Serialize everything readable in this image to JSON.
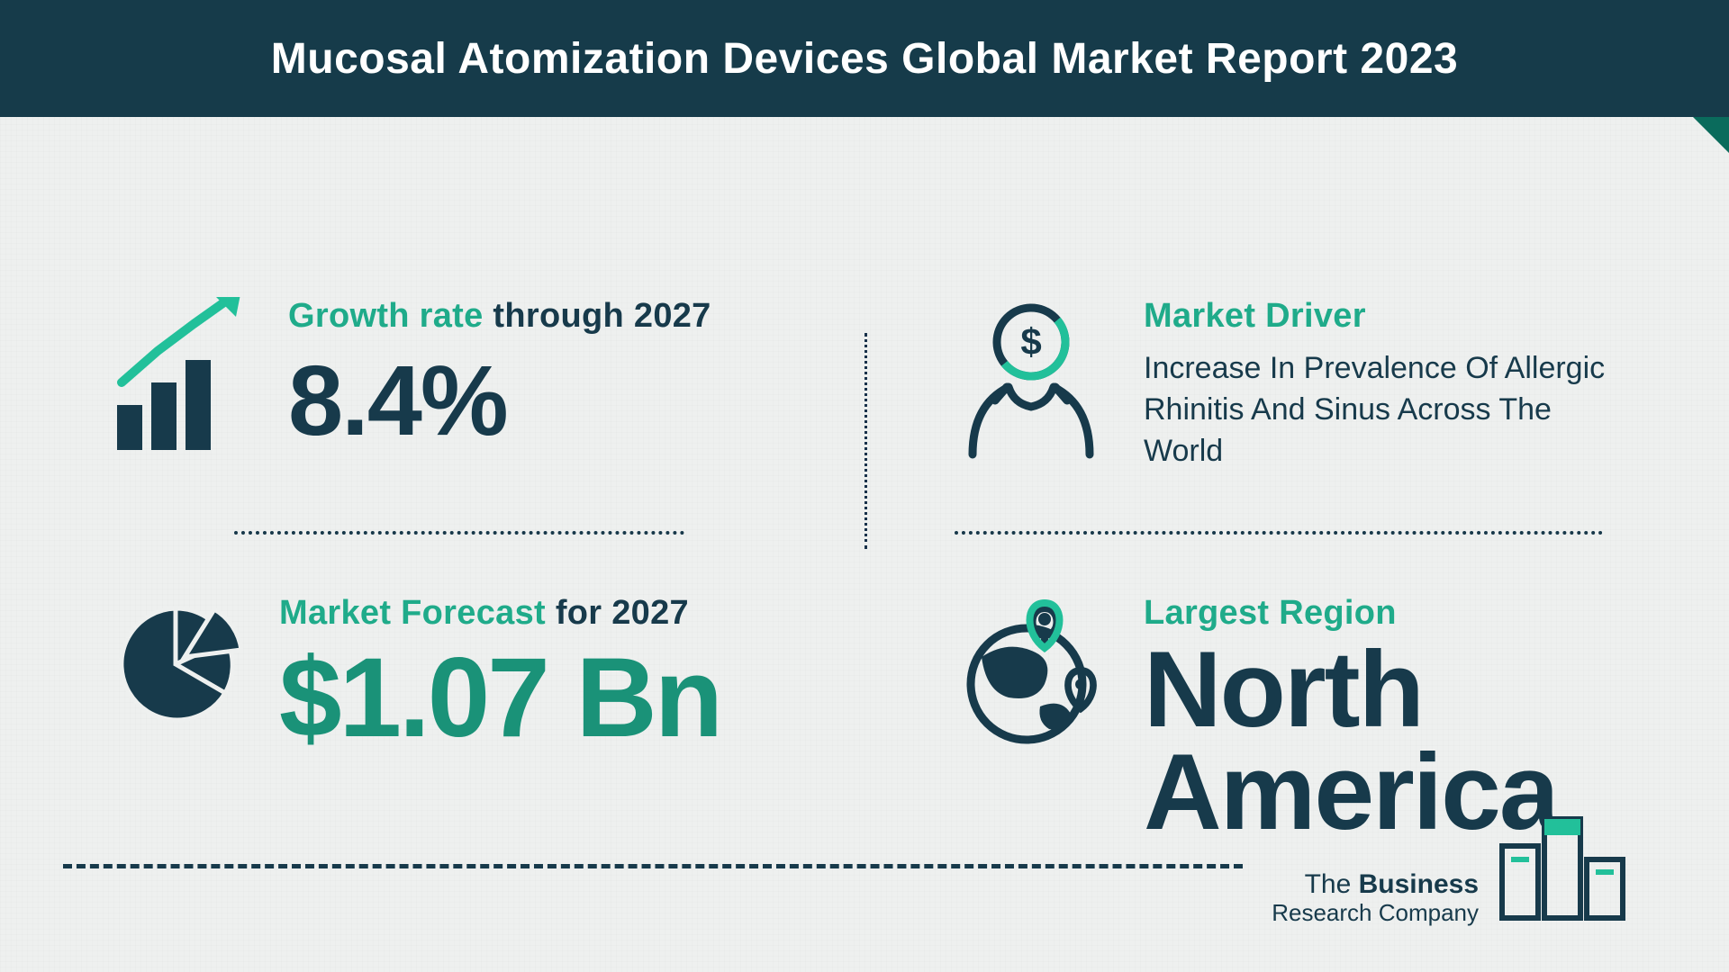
{
  "colors": {
    "header_bg": "#163b4a",
    "accent_green": "#1fab8a",
    "accent_green_dark": "#1a9278",
    "text_dark": "#173a4b",
    "bg": "#eef0ef",
    "corner": "#0a6b5c"
  },
  "header": {
    "title": "Mucosal Atomization Devices Global Market Report 2023"
  },
  "growth": {
    "label_strong": "Growth rate",
    "label_rest": " through 2027",
    "value": "8.4%",
    "value_fontsize": 110
  },
  "forecast": {
    "label_strong": "Market Forecast",
    "label_rest": " for 2027",
    "value": "$1.07 Bn",
    "value_fontsize": 125
  },
  "driver": {
    "label": "Market Driver",
    "text": "Increase In Prevalence Of Allergic Rhinitis And Sinus Across The World"
  },
  "region": {
    "label": "Largest Region",
    "value": "North America"
  },
  "logo": {
    "line1": "The Business",
    "line2": "Research Company"
  }
}
